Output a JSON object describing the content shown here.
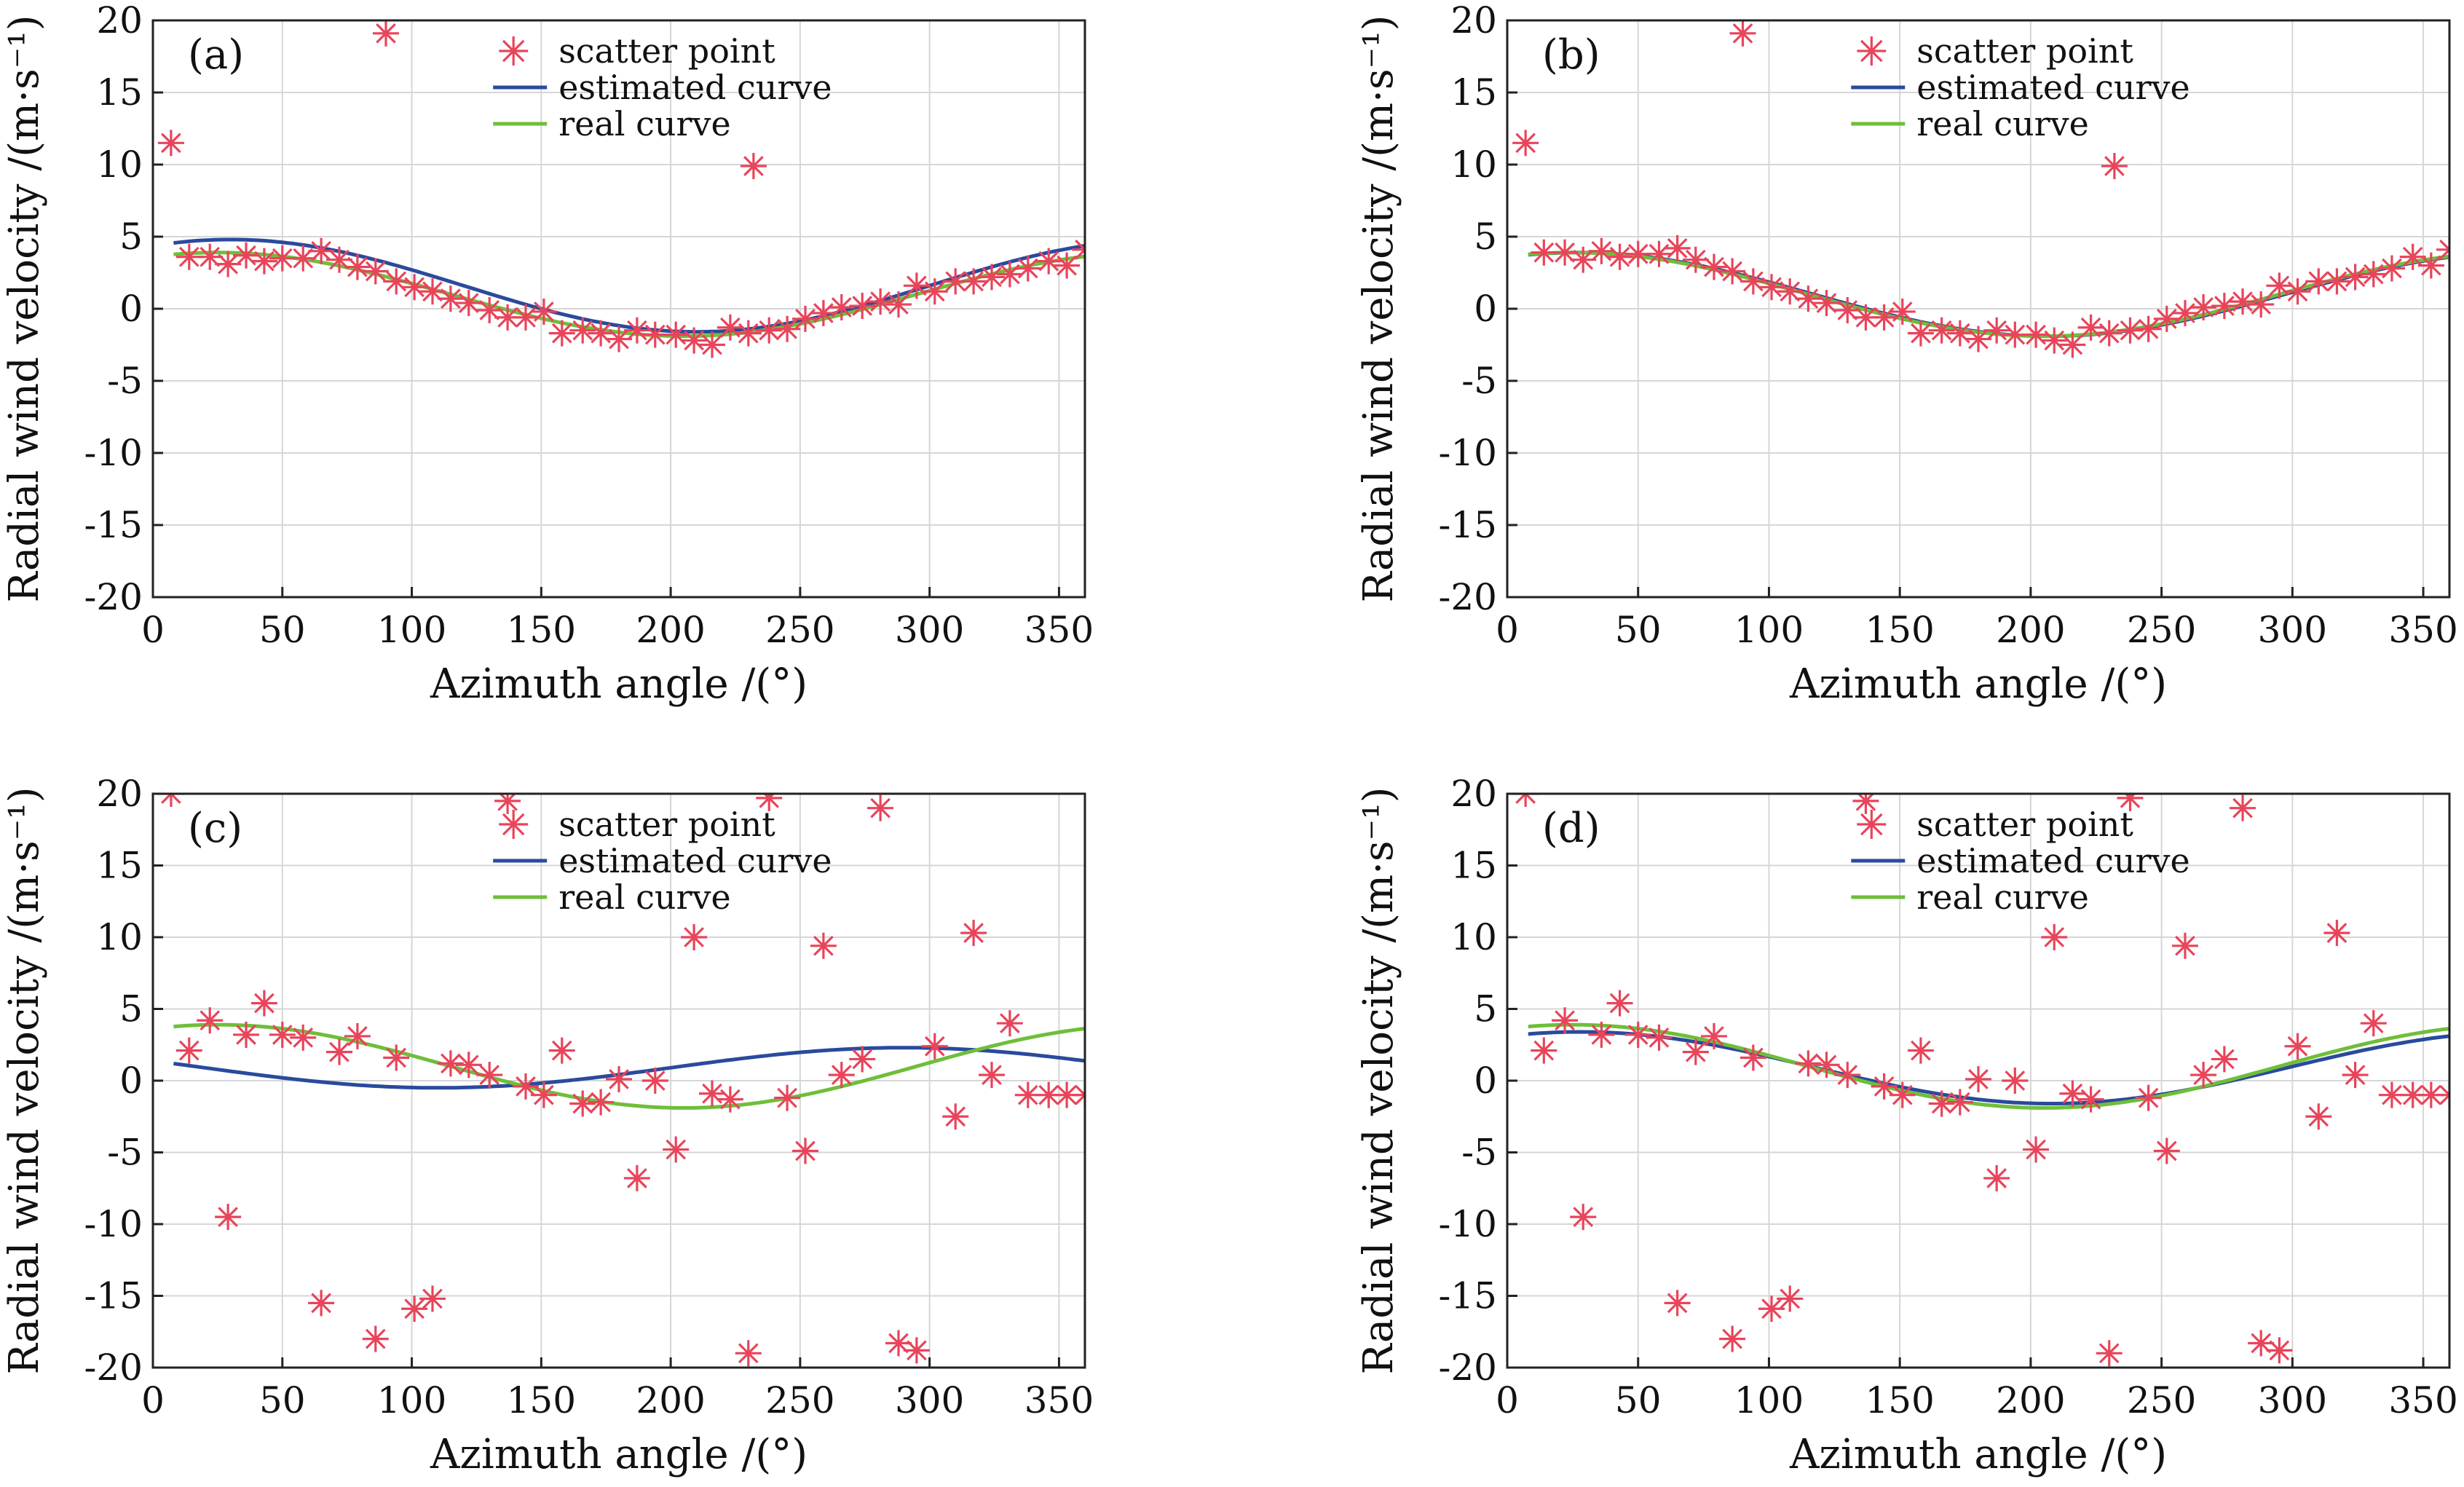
{
  "figure": {
    "legend": {
      "scatter": "scatter point",
      "estimated": "estimated curve",
      "real": "real curve"
    },
    "xlabel": "Azimuth angle /(°)",
    "ylabel": "Radial wind velocity /(m·s⁻¹)",
    "colors": {
      "scatter": "#e8445a",
      "estimated": "#2a4a9c",
      "real": "#6fbe3a",
      "grid": "#d6d6d6"
    }
  },
  "chart_data": [
    {
      "type": "scatter",
      "panel": "(a)",
      "xlabel": "Azimuth angle /(°)",
      "ylabel": "Radial wind velocity /(m·s⁻¹)",
      "xlim": [
        0,
        360
      ],
      "ylim": [
        -20,
        20
      ],
      "xticks": [
        0,
        50,
        100,
        150,
        200,
        250,
        300,
        350
      ],
      "yticks": [
        -20,
        -15,
        -10,
        -5,
        0,
        5,
        10,
        15,
        20
      ],
      "grid": true,
      "legend_position": "top-center",
      "series": [
        {
          "name": "scatter point",
          "kind": "scatter",
          "x": [
            7,
            14,
            22,
            29,
            36,
            43,
            50,
            58,
            65,
            72,
            79,
            86,
            94,
            101,
            108,
            115,
            122,
            130,
            137,
            144,
            151,
            158,
            166,
            173,
            180,
            187,
            194,
            202,
            209,
            216,
            223,
            230,
            238,
            245,
            252,
            259,
            266,
            274,
            281,
            288,
            295,
            302,
            310,
            317,
            324,
            331,
            338,
            346,
            353,
            360,
            90,
            232
          ],
          "y": [
            11.5,
            3.6,
            3.6,
            3.1,
            3.7,
            3.3,
            3.5,
            3.5,
            4.0,
            3.4,
            2.9,
            2.6,
            1.9,
            1.5,
            1.2,
            0.7,
            0.4,
            -0.1,
            -0.6,
            -0.6,
            -0.2,
            -1.7,
            -1.5,
            -1.7,
            -2.1,
            -1.5,
            -1.8,
            -1.8,
            -2.2,
            -2.5,
            -1.3,
            -1.7,
            -1.5,
            -1.4,
            -0.7,
            -0.3,
            0.1,
            0.2,
            0.5,
            0.3,
            1.6,
            1.2,
            1.9,
            1.9,
            2.2,
            2.4,
            2.8,
            3.3,
            3.0,
            4.1,
            19.1,
            9.9
          ]
        },
        {
          "name": "estimated curve",
          "kind": "line",
          "model": {
            "a0": 1.6,
            "a": 3.2,
            "phase": 30
          }
        },
        {
          "name": "real curve",
          "kind": "line",
          "model": {
            "a0": 1.0,
            "a": 2.9,
            "phase": 25
          }
        }
      ]
    },
    {
      "type": "scatter",
      "panel": "(b)",
      "xlabel": "Azimuth angle /(°)",
      "ylabel": "Radial wind velocity /(m·s⁻¹)",
      "xlim": [
        0,
        360
      ],
      "ylim": [
        -20,
        20
      ],
      "xticks": [
        0,
        50,
        100,
        150,
        200,
        250,
        300,
        350
      ],
      "yticks": [
        -20,
        -15,
        -10,
        -5,
        0,
        5,
        10,
        15,
        20
      ],
      "grid": true,
      "legend_position": "top-center",
      "series": [
        {
          "name": "scatter point",
          "kind": "scatter",
          "x": [
            7,
            14,
            22,
            29,
            36,
            43,
            50,
            58,
            65,
            72,
            79,
            86,
            94,
            101,
            108,
            115,
            122,
            130,
            137,
            144,
            151,
            158,
            166,
            173,
            180,
            187,
            194,
            202,
            209,
            216,
            223,
            230,
            238,
            245,
            252,
            259,
            266,
            274,
            281,
            288,
            295,
            302,
            310,
            317,
            324,
            331,
            338,
            346,
            353,
            360,
            90,
            232
          ],
          "y": [
            11.5,
            3.9,
            3.9,
            3.4,
            4.0,
            3.6,
            3.8,
            3.8,
            4.2,
            3.4,
            2.9,
            2.6,
            1.9,
            1.5,
            1.2,
            0.7,
            0.4,
            -0.1,
            -0.6,
            -0.6,
            -0.2,
            -1.7,
            -1.5,
            -1.7,
            -2.1,
            -1.5,
            -1.8,
            -1.8,
            -2.2,
            -2.5,
            -1.3,
            -1.7,
            -1.5,
            -1.4,
            -0.7,
            -0.3,
            0.1,
            0.2,
            0.5,
            0.3,
            1.6,
            1.2,
            1.9,
            1.9,
            2.2,
            2.4,
            2.8,
            3.6,
            3.0,
            4.1,
            19.1,
            9.9
          ]
        },
        {
          "name": "estimated curve",
          "kind": "line",
          "model": {
            "a0": 1.0,
            "a": 2.9,
            "phase": 27
          }
        },
        {
          "name": "real curve",
          "kind": "line",
          "model": {
            "a0": 1.0,
            "a": 2.9,
            "phase": 25
          }
        }
      ]
    },
    {
      "type": "scatter",
      "panel": "(c)",
      "xlabel": "Azimuth angle /(°)",
      "ylabel": "Radial wind velocity /(m·s⁻¹)",
      "xlim": [
        0,
        360
      ],
      "ylim": [
        -20,
        20
      ],
      "xticks": [
        0,
        50,
        100,
        150,
        200,
        250,
        300,
        350
      ],
      "yticks": [
        -20,
        -15,
        -10,
        -5,
        0,
        5,
        10,
        15,
        20
      ],
      "grid": true,
      "legend_position": "top-center",
      "series": [
        {
          "name": "scatter point",
          "kind": "scatter",
          "x": [
            7,
            14,
            22,
            29,
            36,
            43,
            50,
            58,
            65,
            72,
            79,
            86,
            94,
            101,
            108,
            115,
            122,
            130,
            137,
            144,
            151,
            158,
            166,
            173,
            180,
            187,
            194,
            202,
            209,
            216,
            223,
            230,
            238,
            245,
            252,
            259,
            266,
            274,
            281,
            288,
            295,
            302,
            310,
            317,
            324,
            331,
            338,
            346,
            353,
            360
          ],
          "y": [
            20,
            2.1,
            4.2,
            -9.5,
            3.2,
            5.4,
            3.2,
            3.0,
            -15.5,
            2.0,
            3.1,
            -18.0,
            1.6,
            -15.9,
            -15.2,
            1.2,
            1.1,
            0.4,
            19.5,
            -0.4,
            -1.0,
            2.1,
            -1.6,
            -1.5,
            0.1,
            -6.8,
            0.0,
            -4.8,
            10,
            -0.9,
            -1.3,
            -19.0,
            19.7,
            -1.2,
            -4.9,
            9.4,
            0.4,
            1.5,
            19.0,
            -18.3,
            -18.8,
            2.4,
            -2.5,
            10.3,
            0.4,
            4.0,
            -1,
            -1,
            -1,
            -1
          ]
        },
        {
          "name": "estimated curve",
          "kind": "line",
          "model": {
            "a0": 0.9,
            "a": 1.4,
            "phase": 290
          }
        },
        {
          "name": "real curve",
          "kind": "line",
          "model": {
            "a0": 1.0,
            "a": 2.9,
            "phase": 25
          }
        }
      ]
    },
    {
      "type": "scatter",
      "panel": "(d)",
      "xlabel": "Azimuth angle /(°)",
      "ylabel": "Radial wind velocity /(m·s⁻¹)",
      "xlim": [
        0,
        360
      ],
      "ylim": [
        -20,
        20
      ],
      "xticks": [
        0,
        50,
        100,
        150,
        200,
        250,
        300,
        350
      ],
      "yticks": [
        -20,
        -15,
        -10,
        -5,
        0,
        5,
        10,
        15,
        20
      ],
      "grid": true,
      "legend_position": "top-center",
      "series": [
        {
          "name": "scatter point",
          "kind": "scatter",
          "x": [
            7,
            14,
            22,
            29,
            36,
            43,
            50,
            58,
            65,
            72,
            79,
            86,
            94,
            101,
            108,
            115,
            122,
            130,
            137,
            144,
            151,
            158,
            166,
            173,
            180,
            187,
            194,
            202,
            209,
            216,
            223,
            230,
            238,
            245,
            252,
            259,
            266,
            274,
            281,
            288,
            295,
            302,
            310,
            317,
            324,
            331,
            338,
            346,
            353,
            360
          ],
          "y": [
            20,
            2.1,
            4.2,
            -9.5,
            3.2,
            5.4,
            3.2,
            3.0,
            -15.5,
            2.0,
            3.1,
            -18.0,
            1.6,
            -15.9,
            -15.2,
            1.2,
            1.1,
            0.4,
            19.5,
            -0.4,
            -1.0,
            2.1,
            -1.6,
            -1.5,
            0.1,
            -6.8,
            0.0,
            -4.8,
            10,
            -0.9,
            -1.3,
            -19.0,
            19.7,
            -1.2,
            -4.9,
            9.4,
            0.4,
            1.5,
            19.0,
            -18.3,
            -18.8,
            2.4,
            -2.5,
            10.3,
            0.4,
            4.0,
            -1,
            -1,
            -1,
            -1
          ]
        },
        {
          "name": "estimated curve",
          "kind": "line",
          "model": {
            "a0": 0.9,
            "a": 2.5,
            "phase": 28
          }
        },
        {
          "name": "real curve",
          "kind": "line",
          "model": {
            "a0": 1.0,
            "a": 2.9,
            "phase": 25
          }
        }
      ]
    }
  ]
}
